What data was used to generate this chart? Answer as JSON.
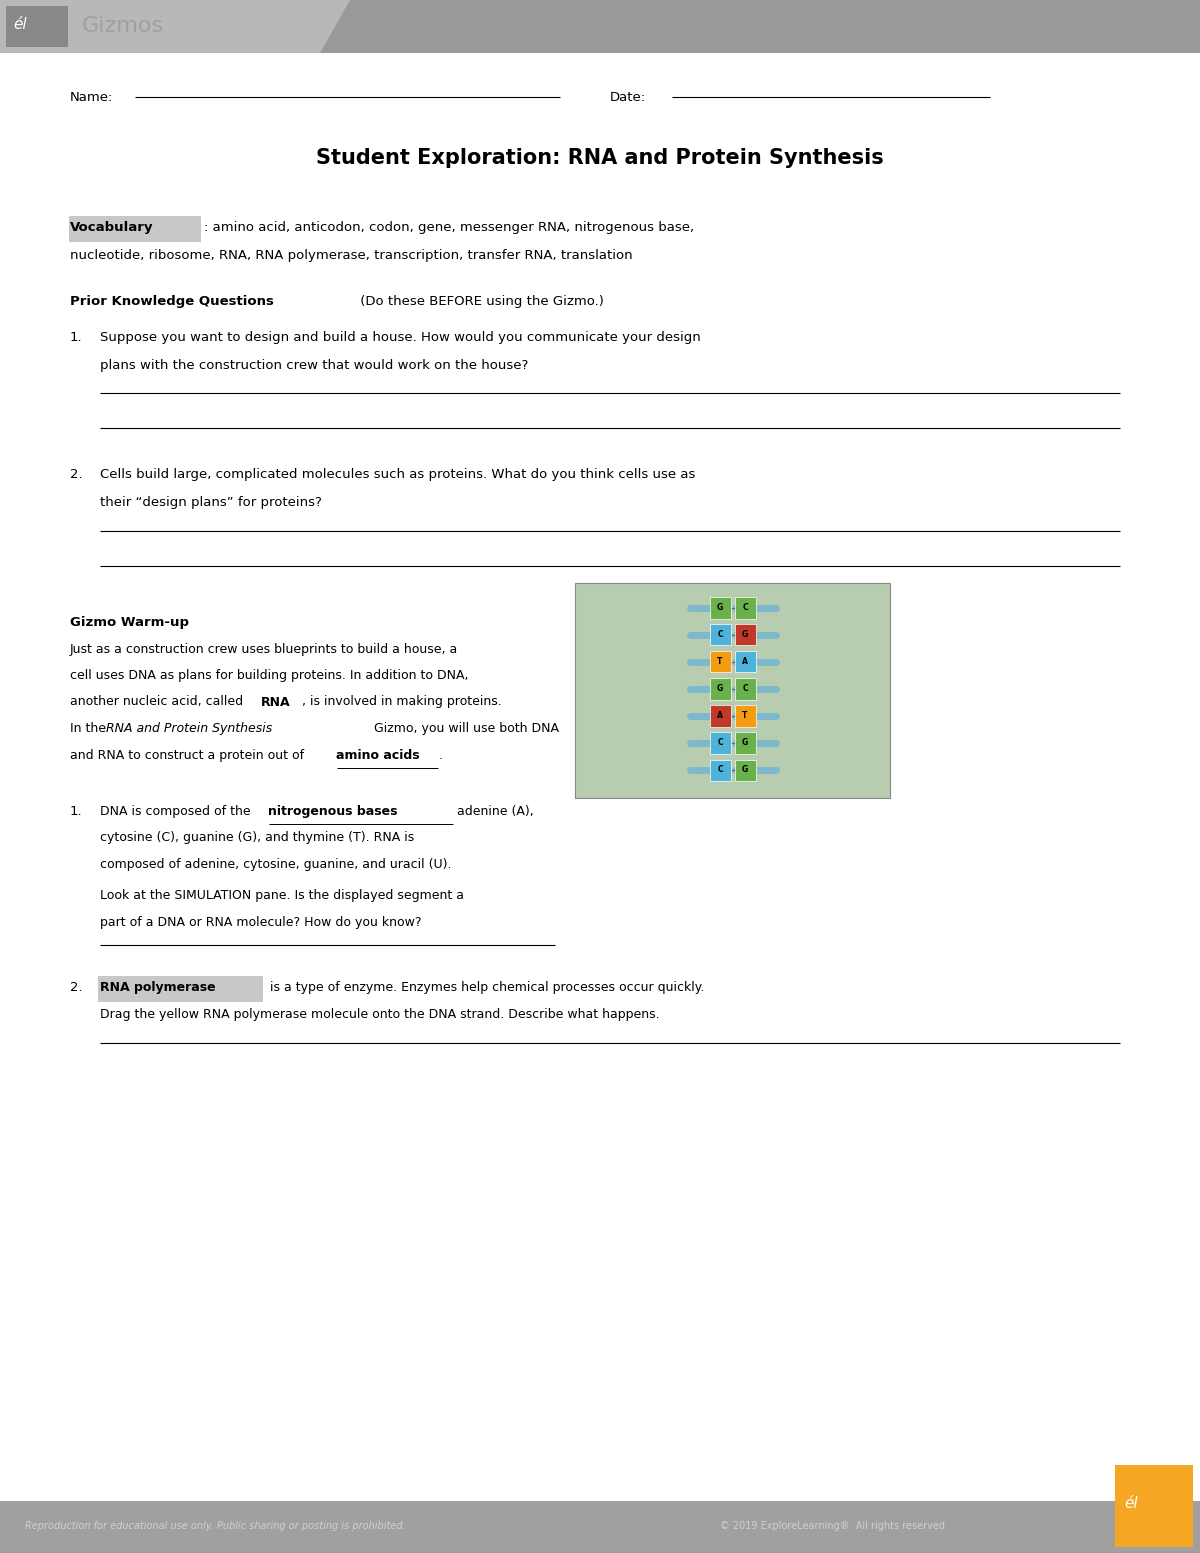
{
  "page_width": 12.0,
  "page_height": 15.53,
  "bg_color": "#ffffff",
  "header_bg": "#b8b8b8",
  "header_dark": "#999999",
  "logo_box_color": "#888888",
  "gizmos_text_color": "#a0a0a0",
  "footer_bg": "#a0a0a0",
  "footer_text_color": "#d0d0d0",
  "vocab_highlight": "#c8c8c8",
  "orange_logo_color": "#f5a623",
  "title": "Student Exploration: RNA and Protein Synthesis",
  "name_label": "Name:",
  "date_label": "Date:",
  "vocab_word": "Vocabulary",
  "vocab_rest": ": amino acid, anticodon, codon, gene, messenger RNA, nitrogenous base,",
  "vocab_line2": "nucleotide, ribosome, RNA, RNA polymerase, transcription, transfer RNA, translation",
  "pkq_bold": "Prior Knowledge Questions",
  "pkq_rest": " (Do these BEFORE using the Gizmo.)",
  "q1_num": "1.",
  "q1_line1": "Suppose you want to design and build a house. How would you communicate your design",
  "q1_line2": "plans with the construction crew that would work on the house?",
  "q2_num": "2.",
  "q2_line1": "Cells build large, complicated molecules such as proteins. What do you think cells use as",
  "q2_line2": "their “design plans” for proteins?",
  "warmup_title": "Gizmo Warm-up",
  "warmup1": "Just as a construction crew uses blueprints to build a house, a",
  "warmup2": "cell uses DNA as plans for building proteins. In addition to DNA,",
  "warmup3_pre": "another nucleic acid, called ",
  "warmup3_bold": "RNA",
  "warmup3_post": ", is involved in making proteins.",
  "warmup4_pre": "In the ",
  "warmup4_italic": "RNA and Protein Synthesis",
  "warmup4_post": " Gizmo, you will use both DNA",
  "warmup5_pre": "and RNA to construct a protein out of ",
  "warmup5_bold": "amino acids",
  "warmup5_post": ".",
  "wq1_num": "1.",
  "wq1_pre": "DNA is composed of the ",
  "wq1_bold": "nitrogenous bases",
  "wq1_post": " adenine (A),",
  "wq1_line2": "cytosine (C), guanine (G), and thymine (T). RNA is",
  "wq1_line3": "composed of adenine, cytosine, guanine, and uracil (U).",
  "wq1_line4": "Look at the SIMULATION pane. Is the displayed segment a",
  "wq1_line5": "part of a DNA or RNA molecule? How do you know?",
  "wq2_num": "2.",
  "wq2_bold": "RNA polymerase",
  "wq2_post": " is a type of enzyme. Enzymes help chemical processes occur quickly.",
  "wq2_line2": "Drag the yellow RNA polymerase molecule onto the DNA strand. Describe what happens.",
  "footer_left": "Reproduction for educational use only. Public sharing or posting is prohibited.",
  "footer_right": "© 2019 ExploreLearning®  All rights reserved",
  "dna_colors": [
    [
      "#6ab04c",
      "#6ab04c",
      "G",
      "C"
    ],
    [
      "#4fb3d9",
      "#c0392b",
      "C",
      "G"
    ],
    [
      "#f39c12",
      "#4fb3d9",
      "T",
      "A"
    ],
    [
      "#6ab04c",
      "#6ab04c",
      "G",
      "C"
    ],
    [
      "#c0392b",
      "#f39c12",
      "A",
      "T"
    ],
    [
      "#4fb3d9",
      "#6ab04c",
      "C",
      "G"
    ],
    [
      "#4fb3d9",
      "#6ab04c",
      "C",
      "G"
    ]
  ]
}
